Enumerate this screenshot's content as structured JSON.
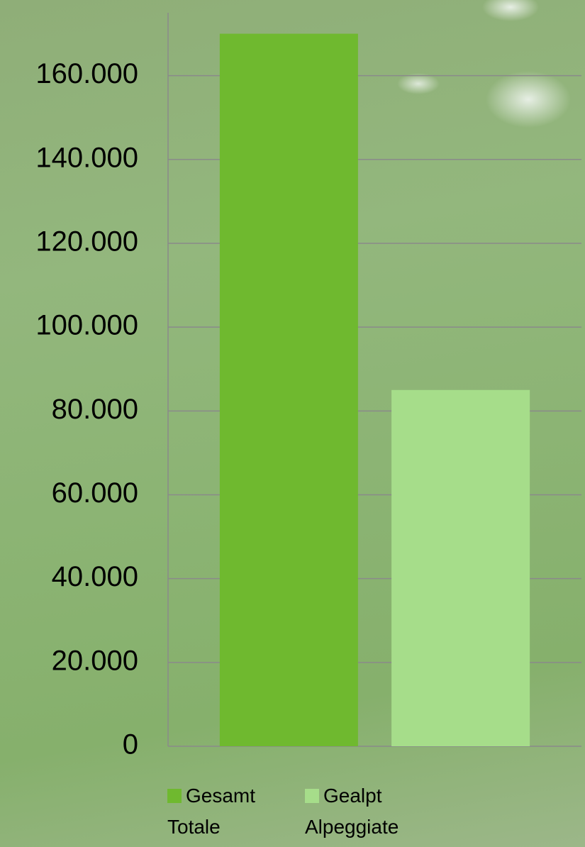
{
  "chart_data": {
    "type": "bar",
    "categories": [
      null
    ],
    "series": [
      {
        "name": "Gesamt Totale",
        "color": "#6fb92f",
        "values": [
          170000
        ]
      },
      {
        "name": "Gealpt Alpeggiate",
        "color": "#a6dd8a",
        "values": [
          85000
        ]
      }
    ],
    "ylim": [
      0,
      175000
    ],
    "yticks": [
      0,
      {
        "value": 20000,
        "label": "20.000"
      },
      {
        "value": 40000,
        "label": "40.000"
      },
      {
        "value": 60000,
        "label": "60.000"
      },
      {
        "value": 80000,
        "label": "80.000"
      },
      {
        "value": 100000,
        "label": "100.000"
      },
      {
        "value": 120000,
        "label": "120.000"
      },
      {
        "value": 140000,
        "label": "140.000"
      },
      {
        "value": 160000,
        "label": "160.000"
      }
    ],
    "grid": true,
    "legend": "bottom"
  }
}
